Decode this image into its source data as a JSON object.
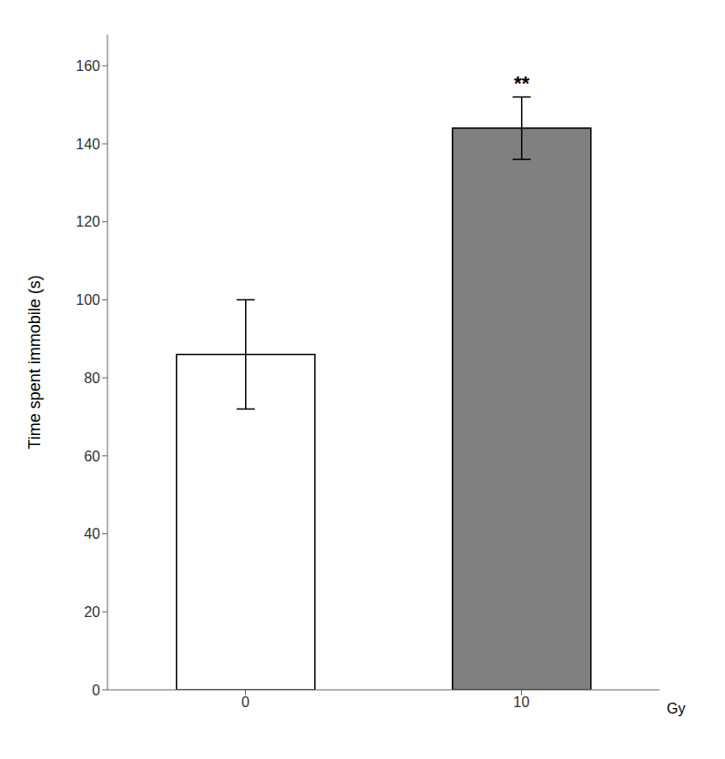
{
  "chart_data": {
    "type": "bar",
    "categories": [
      "0",
      "10"
    ],
    "values": [
      86,
      144
    ],
    "errors": [
      14,
      8
    ],
    "colors": [
      "#ffffff",
      "#808080"
    ],
    "ylabel": "Time spent immobile (s)",
    "xlabel": "Gy",
    "annotations": [
      {
        "text": "**",
        "category": "10"
      }
    ],
    "ylim": [
      0,
      168
    ],
    "yticks": [
      0,
      20,
      40,
      60,
      80,
      100,
      120,
      140,
      160
    ]
  }
}
